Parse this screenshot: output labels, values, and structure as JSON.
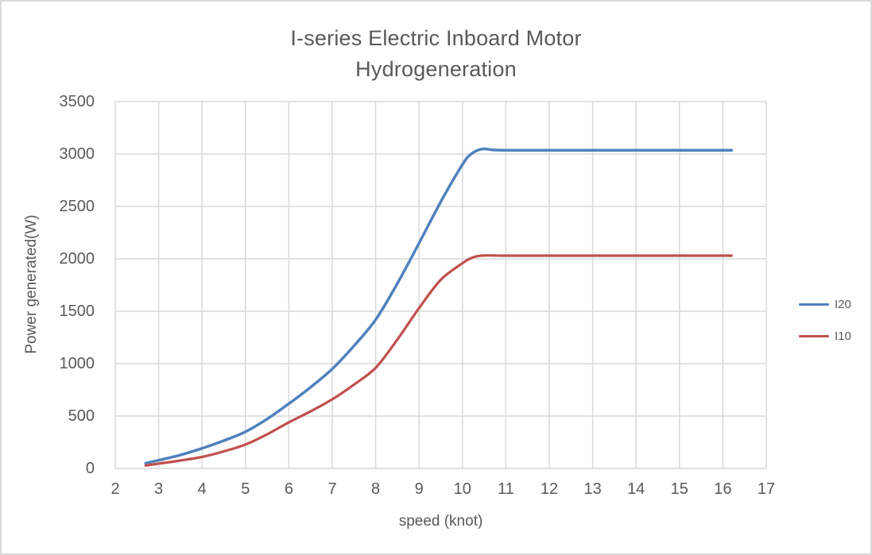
{
  "window": {
    "background": "#ffffff",
    "border_color": "#d9d9d9"
  },
  "colors": {
    "text": "#595959",
    "gridline": "#d9d9d9",
    "series_i20": "#4f81bd",
    "series_i10": "#c0504d"
  },
  "chart_data": {
    "type": "line",
    "title_line1": "I-series Electric Inboard Motor",
    "title_line2": "Hydrogeneration",
    "xlabel": "speed (knot)",
    "ylabel": "Power generated(W)",
    "xlim": [
      2,
      17
    ],
    "ylim": [
      0,
      3500
    ],
    "x_ticks": [
      2,
      3,
      4,
      5,
      6,
      7,
      8,
      9,
      10,
      11,
      12,
      13,
      14,
      15,
      16,
      17
    ],
    "y_ticks": [
      0,
      500,
      1000,
      1500,
      2000,
      2500,
      3000,
      3500
    ],
    "grid": true,
    "legend_position": "right",
    "series": [
      {
        "name": "I20",
        "color": "#4f81bd",
        "stroke_width": 3.5,
        "points": [
          [
            2.7,
            50
          ],
          [
            3,
            78
          ],
          [
            3.5,
            128
          ],
          [
            4,
            192
          ],
          [
            4.5,
            265
          ],
          [
            5,
            350
          ],
          [
            5.5,
            472
          ],
          [
            6,
            618
          ],
          [
            6.5,
            775
          ],
          [
            7,
            950
          ],
          [
            7.5,
            1170
          ],
          [
            8,
            1420
          ],
          [
            8.5,
            1765
          ],
          [
            9,
            2150
          ],
          [
            9.5,
            2545
          ],
          [
            10,
            2900
          ],
          [
            10.2,
            3000
          ],
          [
            10.45,
            3048
          ],
          [
            10.7,
            3040
          ],
          [
            11,
            3036
          ],
          [
            12,
            3036
          ],
          [
            13,
            3036
          ],
          [
            14,
            3036
          ],
          [
            15,
            3036
          ],
          [
            16.2,
            3036
          ]
        ]
      },
      {
        "name": "I10",
        "color": "#c0504d",
        "stroke_width": 3.2,
        "points": [
          [
            2.7,
            28
          ],
          [
            3,
            46
          ],
          [
            3.5,
            76
          ],
          [
            4,
            110
          ],
          [
            4.5,
            163
          ],
          [
            5,
            228
          ],
          [
            5.5,
            326
          ],
          [
            6,
            440
          ],
          [
            6.5,
            545
          ],
          [
            7,
            660
          ],
          [
            7.5,
            800
          ],
          [
            8,
            960
          ],
          [
            8.5,
            1230
          ],
          [
            9,
            1530
          ],
          [
            9.5,
            1800
          ],
          [
            10,
            1958
          ],
          [
            10.25,
            2015
          ],
          [
            10.5,
            2032
          ],
          [
            11,
            2030
          ],
          [
            12,
            2030
          ],
          [
            13,
            2030
          ],
          [
            14,
            2030
          ],
          [
            15,
            2030
          ],
          [
            16.2,
            2030
          ]
        ]
      }
    ]
  }
}
